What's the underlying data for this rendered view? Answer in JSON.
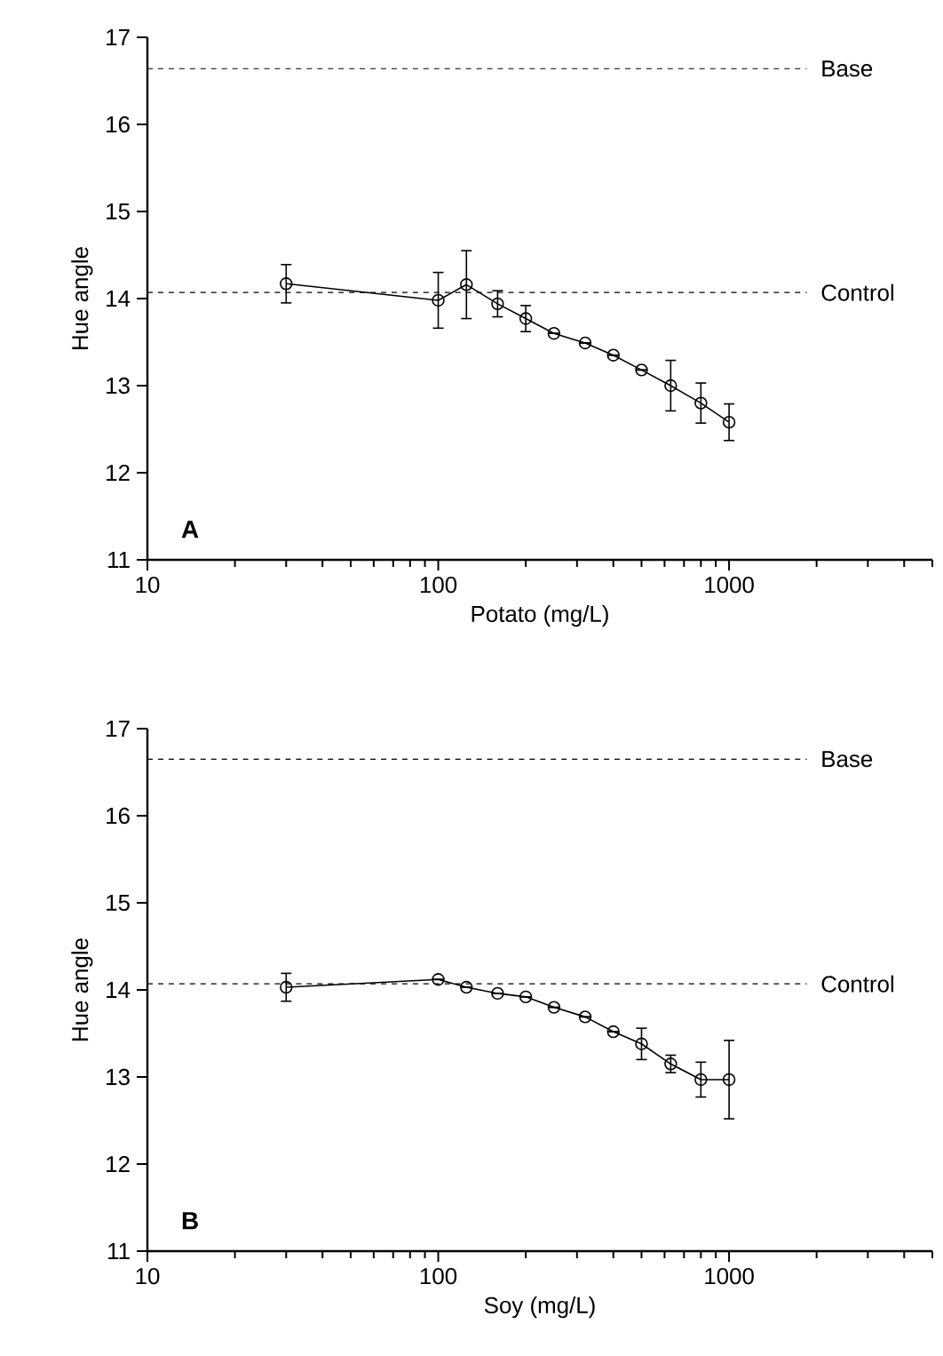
{
  "chart_data": [
    {
      "type": "line",
      "xlabel": "Potato (mg/L)",
      "ylabel": "Hue angle",
      "log": "x",
      "xlim": [
        10,
        5000
      ],
      "xticks": [
        10,
        100,
        1000
      ],
      "ylim": [
        11,
        17
      ],
      "yticks": [
        11,
        12,
        13,
        14,
        15,
        16,
        17
      ],
      "grid": false,
      "marker": "circle",
      "line_style": "solid",
      "annotations": [
        "A"
      ],
      "ref_lines": [
        {
          "axis": "y",
          "value": 16.64,
          "label": "Base",
          "line_style": "dashed"
        },
        {
          "axis": "y",
          "value": 14.07,
          "label": "Control",
          "line_style": "dashed"
        }
      ],
      "x": [
        30,
        100,
        125,
        160,
        200,
        250,
        320,
        400,
        500,
        630,
        800,
        1000
      ],
      "series": [
        {
          "color": "#000000",
          "values": [
            14.17,
            13.98,
            14.16,
            13.94,
            13.77,
            13.6,
            13.49,
            13.35,
            13.18,
            13.0,
            12.8,
            12.58
          ],
          "errors": [
            0.22,
            0.32,
            0.39,
            0.15,
            0.15,
            null,
            null,
            null,
            null,
            0.29,
            0.23,
            0.21
          ]
        }
      ]
    },
    {
      "type": "line",
      "xlabel": "Soy (mg/L)",
      "ylabel": "Hue angle",
      "log": "x",
      "xlim": [
        10,
        5000
      ],
      "xticks": [
        10,
        100,
        1000
      ],
      "ylim": [
        11,
        17
      ],
      "yticks": [
        11,
        12,
        13,
        14,
        15,
        16,
        17
      ],
      "grid": false,
      "marker": "circle",
      "line_style": "solid",
      "annotations": [
        "B"
      ],
      "ref_lines": [
        {
          "axis": "y",
          "value": 16.65,
          "label": "Base",
          "line_style": "dashed"
        },
        {
          "axis": "y",
          "value": 14.07,
          "label": "Control",
          "line_style": "dashed"
        }
      ],
      "x": [
        30,
        100,
        125,
        160,
        200,
        250,
        320,
        400,
        500,
        630,
        800,
        1000
      ],
      "series": [
        {
          "color": "#000000",
          "values": [
            14.03,
            14.12,
            14.03,
            13.96,
            13.92,
            13.8,
            13.69,
            13.52,
            13.38,
            13.15,
            12.97,
            12.97
          ],
          "errors": [
            0.16,
            null,
            null,
            null,
            null,
            null,
            null,
            null,
            0.18,
            0.1,
            0.2,
            0.45
          ]
        }
      ]
    }
  ]
}
